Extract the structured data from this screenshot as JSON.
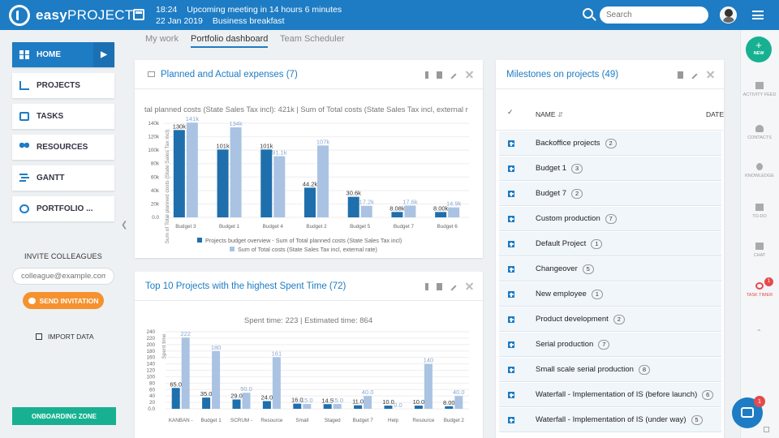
{
  "topbar": {
    "brand_bold": "easy",
    "brand_light": "PROJECT",
    "meeting_time": "18:24",
    "meeting_text": "Upcoming meeting in 14 hours 6 minutes",
    "meeting_date": "22 Jan 2019",
    "meeting_name": "Business breakfast",
    "search_placeholder": "Search"
  },
  "sidebar": {
    "items": [
      {
        "label": "HOME"
      },
      {
        "label": "PROJECTS"
      },
      {
        "label": "TASKS"
      },
      {
        "label": "RESOURCES"
      },
      {
        "label": "GANTT"
      },
      {
        "label": "PORTFOLIO ..."
      }
    ],
    "invite_title": "INVITE COLLEAGUES",
    "invite_placeholder": "colleague@example.com",
    "invite_button": "SEND INVITATION",
    "import_label": "IMPORT DATA",
    "onboarding_label": "ONBOARDING ZONE"
  },
  "tabs": [
    {
      "label": "My work"
    },
    {
      "label": "Portfolio dashboard"
    },
    {
      "label": "Team Scheduler"
    }
  ],
  "expenses_panel": {
    "title": "Planned and Actual expenses (7)"
  },
  "spent_panel": {
    "title": "Top 10 Projects with the highest Spent Time (72)"
  },
  "milestones_panel": {
    "title": "Milestones on projects (49)",
    "col_name": "NAME",
    "col_date": "DATE",
    "rows": [
      {
        "name": "Backoffice projects",
        "count": "2"
      },
      {
        "name": "Budget 1",
        "count": "3"
      },
      {
        "name": "Budget 7",
        "count": "2"
      },
      {
        "name": "Custom production",
        "count": "7"
      },
      {
        "name": "Default Project",
        "count": "1"
      },
      {
        "name": "Changeover",
        "count": "5"
      },
      {
        "name": "New employee",
        "count": "1"
      },
      {
        "name": "Product development",
        "count": "2"
      },
      {
        "name": "Serial production",
        "count": "7"
      },
      {
        "name": "Small scale serial production",
        "count": "8"
      },
      {
        "name": "Waterfall - Implementation of IS (before launch)",
        "count": "6"
      },
      {
        "name": "Waterfall - Implementation of IS (under way)",
        "count": "5"
      }
    ]
  },
  "rail": {
    "new_label": "NEW",
    "items": [
      {
        "label": "ACTIVITY FEED"
      },
      {
        "label": "CONTACTS"
      },
      {
        "label": "KNOWLEDGE"
      },
      {
        "label": "TO-DO"
      },
      {
        "label": "CHAT"
      },
      {
        "label": "TASK TIMER"
      }
    ],
    "timer_badge": "1",
    "chat_badge": "1"
  },
  "chart_data": [
    {
      "type": "bar",
      "title": "tal planned costs (State Sales Tax incl): 421k | Sum of Total costs (State Sales Tax incl, external r",
      "ylabel": "Sum of Total planned costs (State Sales Tax incl)",
      "ylim": [
        0,
        140000
      ],
      "yticks": [
        "0.0",
        "20k",
        "40k",
        "60k",
        "80k",
        "100k",
        "120k",
        "140k"
      ],
      "categories": [
        "Budget 3",
        "Budget 1",
        "Budget 4",
        "Budget 2",
        "Budget 5",
        "Budget 7",
        "Budget 6"
      ],
      "series": [
        {
          "name": "Projects budget overview - Sum of Total planned costs (State Sales Tax incl)",
          "values": [
            130000,
            101000,
            101000,
            44200,
            30600,
            8080,
            8000
          ],
          "labels": [
            "130k",
            "101k",
            "101k",
            "44.2k",
            "30.6k",
            "8.08k",
            "8.00k"
          ],
          "color": "#1f6fad"
        },
        {
          "name": "Sum of Total costs (State Sales Tax incl, external rate)",
          "values": [
            141000,
            134000,
            91100,
            107000,
            17200,
            17600,
            14900
          ],
          "labels": [
            "141k",
            "134k",
            "91.1k",
            "107k",
            "17.2k",
            "17.6k",
            "14.9k"
          ],
          "color": "#aac3e3"
        }
      ],
      "legend": "bottom"
    },
    {
      "type": "bar",
      "title": "Spent time: 223 | Estimated time: 864",
      "ylabel": "Spent time",
      "ylim": [
        0,
        240
      ],
      "yticks": [
        "0.0",
        "20",
        "40",
        "60",
        "80",
        "100",
        "120",
        "140",
        "160",
        "180",
        "200",
        "220",
        "240"
      ],
      "categories": [
        "KANBAN -",
        "Budget 1",
        "SCRUM -",
        "Resource",
        "Small",
        "Staged",
        "Budget 7",
        "Help",
        "Resource",
        "Budget 2"
      ],
      "series": [
        {
          "values": [
            65.0,
            35.0,
            29.0,
            24.0,
            16.0,
            14.5,
            11.0,
            10.0,
            10.0,
            8.0
          ],
          "labels": [
            "65.0",
            "35.0",
            "29.0",
            "24.0",
            "16.0",
            "14.5",
            "11.0",
            "10.0",
            "10.0",
            "8.00"
          ],
          "color": "#1f6fad"
        },
        {
          "values": [
            222,
            180,
            50.0,
            161,
            15.0,
            15.0,
            40.0,
            0,
            140,
            40.0
          ],
          "labels": [
            "222",
            "180",
            "50.0",
            "161",
            "15.0",
            "15.0",
            "40.0",
            "0.0",
            "140",
            "40.0"
          ],
          "color": "#aac3e3"
        }
      ]
    }
  ]
}
